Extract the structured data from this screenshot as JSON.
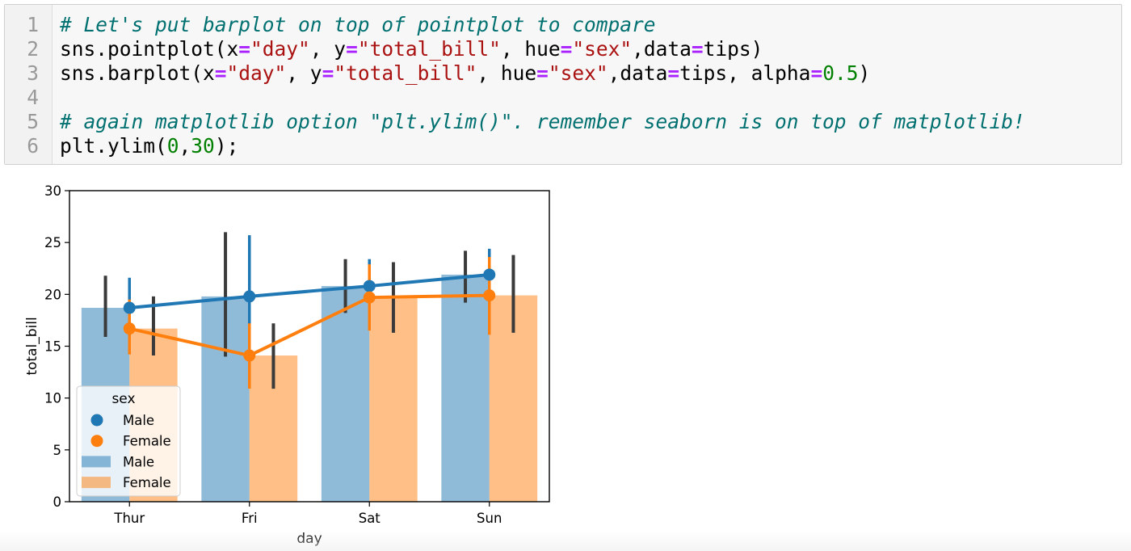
{
  "code_cell": {
    "lines": [
      {
        "n": "1",
        "parts": [
          [
            "cmt",
            "# Let's put barplot on top of pointplot to compare"
          ]
        ]
      },
      {
        "n": "2",
        "parts": [
          [
            "",
            "sns.pointplot(x"
          ],
          [
            "op",
            "="
          ],
          [
            "str",
            "\"day\""
          ],
          [
            "",
            ", y"
          ],
          [
            "op",
            "="
          ],
          [
            "str",
            "\"total_bill\""
          ],
          [
            "",
            ", hue"
          ],
          [
            "op",
            "="
          ],
          [
            "str",
            "\"sex\""
          ],
          [
            "",
            ",data"
          ],
          [
            "op",
            "="
          ],
          [
            "",
            "tips)"
          ]
        ]
      },
      {
        "n": "3",
        "parts": [
          [
            "",
            "sns.barplot(x"
          ],
          [
            "op",
            "="
          ],
          [
            "str",
            "\"day\""
          ],
          [
            "",
            ", y"
          ],
          [
            "op",
            "="
          ],
          [
            "str",
            "\"total_bill\""
          ],
          [
            "",
            ", hue"
          ],
          [
            "op",
            "="
          ],
          [
            "str",
            "\"sex\""
          ],
          [
            "",
            ",data"
          ],
          [
            "op",
            "="
          ],
          [
            "",
            "tips, alpha"
          ],
          [
            "op",
            "="
          ],
          [
            "num",
            "0.5"
          ],
          [
            "",
            ")"
          ]
        ]
      },
      {
        "n": "4",
        "parts": []
      },
      {
        "n": "5",
        "parts": [
          [
            "cmt",
            "# again matplotlib option \"plt.ylim()\". remember seaborn is on top of matplotlib!"
          ]
        ]
      },
      {
        "n": "6",
        "parts": [
          [
            "",
            "plt.ylim("
          ],
          [
            "num",
            "0"
          ],
          [
            "",
            ","
          ],
          [
            "num",
            "30"
          ],
          [
            "",
            ");"
          ]
        ]
      }
    ]
  },
  "chart_data": {
    "type": "bar",
    "categories": [
      "Thur",
      "Fri",
      "Sat",
      "Sun"
    ],
    "xlabel": "day",
    "ylabel": "total_bill",
    "ylim": [
      0,
      30
    ],
    "yticks": [
      0,
      5,
      10,
      15,
      20,
      25,
      30
    ],
    "grid": false,
    "legend": {
      "title": "sex",
      "placement": "lower-left",
      "entries": [
        {
          "label": "Male",
          "kind": "point",
          "color": "#1f77b4"
        },
        {
          "label": "Female",
          "kind": "point",
          "color": "#ff7f0e"
        },
        {
          "label": "Male",
          "kind": "bar",
          "color": "#1f77b4"
        },
        {
          "label": "Female",
          "kind": "bar",
          "color": "#ff7f0e"
        }
      ]
    },
    "bar_alpha": 0.5,
    "bars": [
      {
        "name": "Male",
        "color": "#1f77b4",
        "values": [
          18.7,
          19.8,
          20.8,
          21.9
        ],
        "ci_low": [
          15.9,
          14.0,
          18.2,
          19.2
        ],
        "ci_high": [
          21.8,
          26.0,
          23.4,
          24.2
        ]
      },
      {
        "name": "Female",
        "color": "#ff7f0e",
        "values": [
          16.7,
          14.1,
          19.7,
          19.9
        ],
        "ci_low": [
          14.1,
          10.9,
          16.3,
          16.3
        ],
        "ci_high": [
          19.8,
          17.2,
          23.1,
          23.8
        ]
      }
    ],
    "points": [
      {
        "name": "Male",
        "color": "#1f77b4",
        "values": [
          18.7,
          19.8,
          20.8,
          21.9
        ],
        "ci_low": [
          16.1,
          15.7,
          18.6,
          19.8
        ],
        "ci_high": [
          21.6,
          25.7,
          23.4,
          24.4
        ]
      },
      {
        "name": "Female",
        "color": "#ff7f0e",
        "values": [
          16.7,
          14.1,
          19.7,
          19.9
        ],
        "ci_low": [
          14.2,
          10.9,
          16.5,
          16.1
        ],
        "ci_high": [
          19.5,
          17.2,
          22.9,
          23.6
        ]
      }
    ],
    "errorbar_color": "#3a3a3a"
  }
}
